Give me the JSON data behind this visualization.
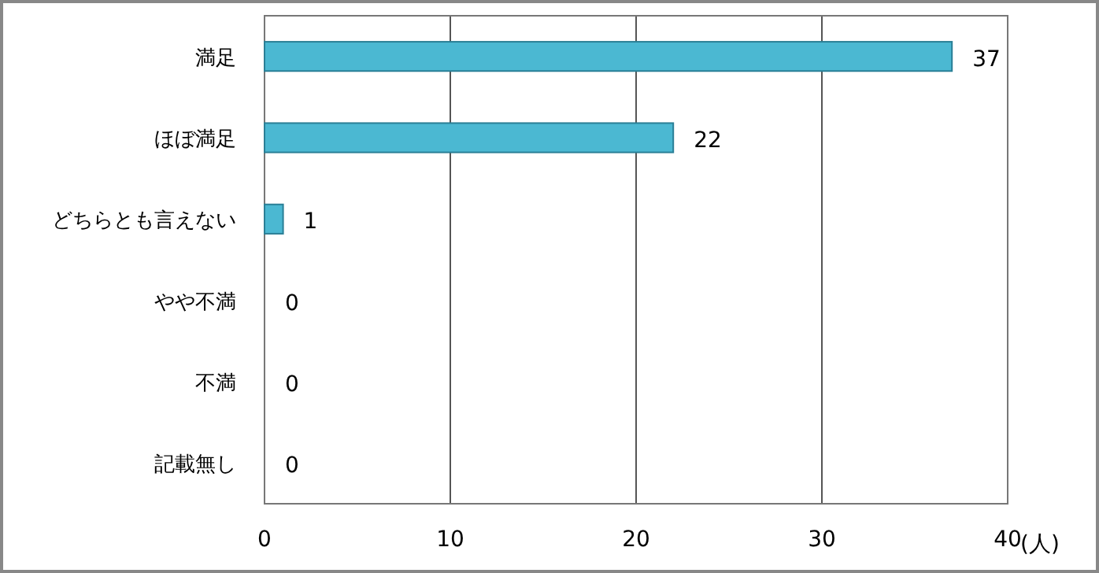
{
  "chart_data": {
    "type": "bar",
    "orientation": "horizontal",
    "categories": [
      "満足",
      "ほぼ満足",
      "どちらとも言えない",
      "やや不満",
      "不満",
      "記載無し"
    ],
    "values": [
      37,
      22,
      1,
      0,
      0,
      0
    ],
    "color": "#4bb8d2",
    "xlabel": "(人)",
    "xlim": [
      0,
      40
    ],
    "xticks": [
      0,
      10,
      20,
      30,
      40
    ],
    "grid": "x",
    "data_labels": true
  }
}
